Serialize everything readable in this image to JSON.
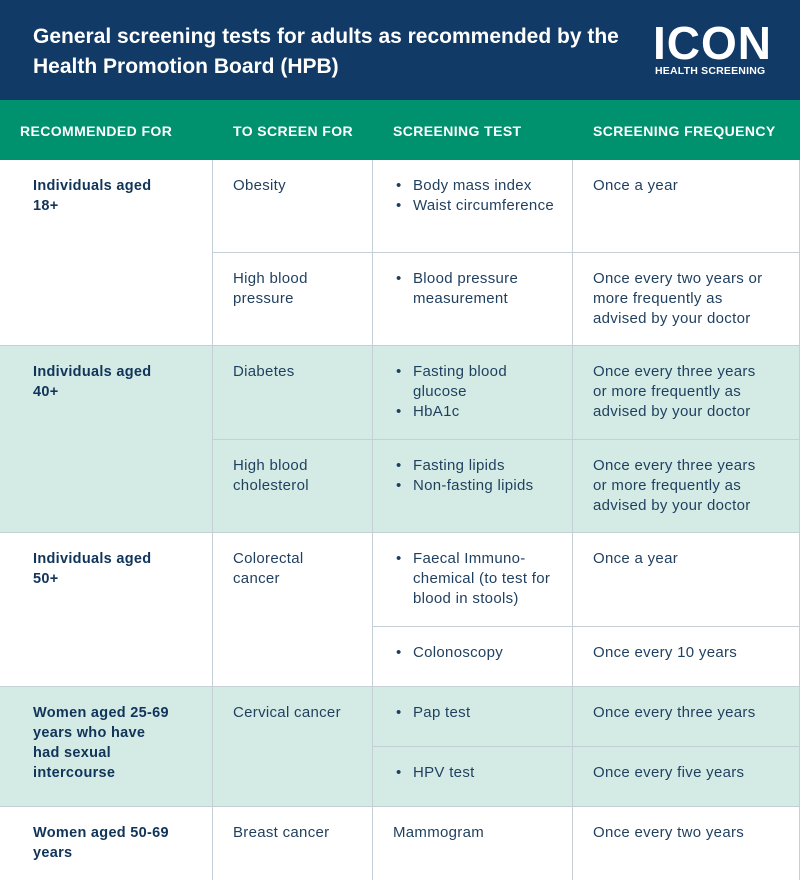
{
  "header": {
    "title": "General screening tests for adults as recommended by the Health Promotion Board (HPB)",
    "logo": {
      "name": "ICON",
      "tagline": "HEALTH SCREENING"
    }
  },
  "table": {
    "columns": [
      "RECOMMENDED FOR",
      "TO SCREEN FOR",
      "SCREENING TEST",
      "SCREENING FREQUENCY"
    ],
    "groups": [
      {
        "recommended_for": "Individuals aged 18+",
        "conditions": [
          {
            "screen_for": "Obesity",
            "rows": [
              {
                "tests": [
                  "Body mass index",
                  "Waist circumference"
                ],
                "frequency": "Once a year"
              }
            ]
          },
          {
            "screen_for": "High blood pressure",
            "rows": [
              {
                "tests": [
                  "Blood pressure measurement"
                ],
                "frequency": "Once every two years or more frequently as advised by your doctor"
              }
            ]
          }
        ]
      },
      {
        "recommended_for": "Individuals aged 40+",
        "conditions": [
          {
            "screen_for": "Diabetes",
            "rows": [
              {
                "tests": [
                  "Fasting blood glucose",
                  "HbA1c"
                ],
                "frequency": "Once every three years or more frequently as advised by your doctor"
              }
            ]
          },
          {
            "screen_for": "High blood cholesterol",
            "rows": [
              {
                "tests": [
                  "Fasting lipids",
                  "Non-fasting lipids"
                ],
                "frequency": "Once every three years or more frequently as advised by your doctor"
              }
            ]
          }
        ]
      },
      {
        "recommended_for": "Individuals aged 50+",
        "conditions": [
          {
            "screen_for": "Colorectal cancer",
            "rows": [
              {
                "tests": [
                  "Faecal Immuno-chemical (to test for blood in stools)"
                ],
                "frequency": "Once a year"
              },
              {
                "tests": [
                  "Colonoscopy"
                ],
                "frequency": "Once every 10 years"
              }
            ]
          }
        ]
      },
      {
        "recommended_for": "Women aged 25-69 years who have had sexual intercourse",
        "conditions": [
          {
            "screen_for": "Cervical cancer",
            "rows": [
              {
                "tests": [
                  "Pap test"
                ],
                "frequency": "Once every three years"
              },
              {
                "tests": [
                  "HPV test"
                ],
                "frequency": "Once every five years"
              }
            ]
          }
        ]
      },
      {
        "recommended_for": "Women aged 50-69 years",
        "conditions": [
          {
            "screen_for": "Breast cancer",
            "rows": [
              {
                "tests": [
                  "Mammogram"
                ],
                "bulleted": false,
                "frequency": "Once every two years"
              }
            ]
          }
        ]
      }
    ]
  }
}
